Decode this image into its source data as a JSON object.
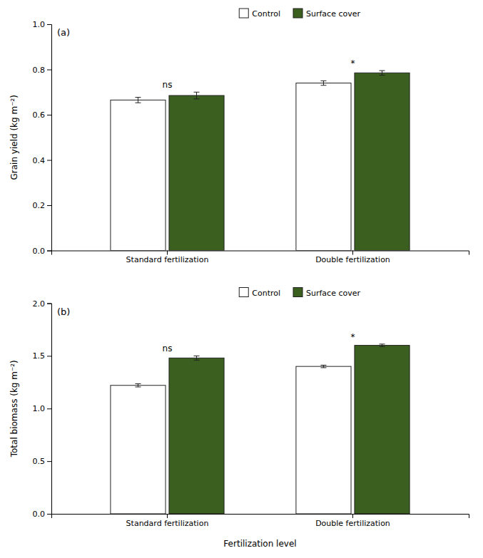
{
  "chart_data": [
    {
      "type": "bar",
      "title": "(a)",
      "ylabel": "Grain yield (kg m⁻²)",
      "categories": [
        "Standard fertilization",
        "Double fertilization"
      ],
      "series": [
        {
          "name": "Control",
          "color": "#ffffff",
          "values": [
            0.665,
            0.74
          ],
          "errors": [
            0.012,
            0.01
          ]
        },
        {
          "name": "Surface cover",
          "color": "#3a5f1e",
          "values": [
            0.685,
            0.785
          ],
          "errors": [
            0.015,
            0.01
          ]
        }
      ],
      "significance": [
        "ns",
        "*"
      ],
      "ylim": [
        0.0,
        1.0
      ],
      "yticks": [
        {
          "value": 0.0,
          "label": "0.0"
        },
        0.2,
        0.4,
        0.6,
        0.8,
        {
          "value": 1.0,
          "label": "1.0"
        }
      ],
      "legend": "top"
    },
    {
      "type": "bar",
      "title": "(b)",
      "ylabel": "Total biomass (kg m⁻²)",
      "xlabel": "Fertilization level",
      "categories": [
        "Standard fertilization",
        "Double fertilization"
      ],
      "series": [
        {
          "name": "Control",
          "color": "#ffffff",
          "values": [
            1.22,
            1.4
          ],
          "errors": [
            0.015,
            0.012
          ]
        },
        {
          "name": "Surface cover",
          "color": "#3a5f1e",
          "values": [
            1.48,
            1.6
          ],
          "errors": [
            0.02,
            0.012
          ]
        }
      ],
      "significance": [
        "ns",
        "*"
      ],
      "ylim": [
        0.0,
        2.0
      ],
      "yticks": [
        {
          "value": 0.0,
          "label": "0.0"
        },
        0.5,
        {
          "value": 1.0,
          "label": "1.0"
        },
        1.5,
        {
          "value": 2.0,
          "label": "2.0"
        }
      ],
      "legend": "top"
    }
  ]
}
